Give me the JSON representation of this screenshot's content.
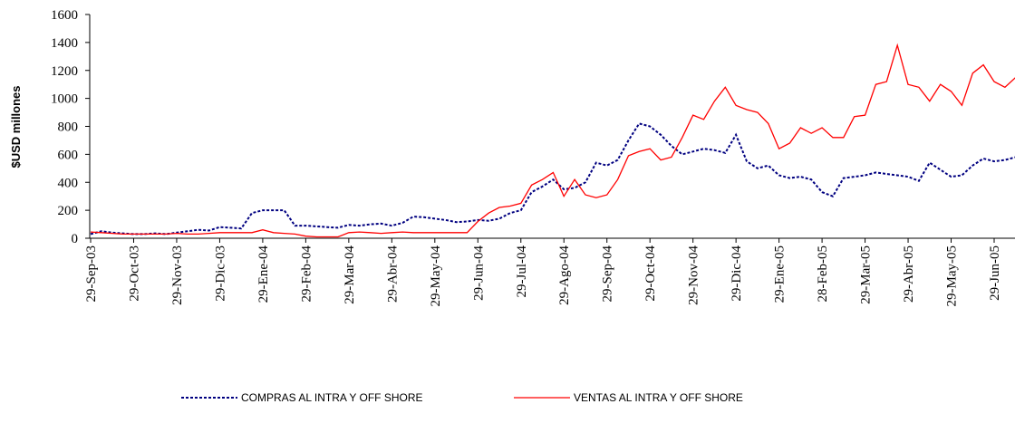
{
  "chart_data": {
    "type": "line",
    "ylabel": "$USD millones",
    "categories": [
      "29-Sep-03",
      null,
      null,
      null,
      "29-Oct-03",
      null,
      null,
      null,
      "29-Nov-03",
      null,
      null,
      null,
      "29-Dic-03",
      null,
      null,
      null,
      "29-Ene-04",
      null,
      null,
      null,
      "29-Feb-04",
      null,
      null,
      null,
      "29-Mar-04",
      null,
      null,
      null,
      "29-Abr-04",
      null,
      null,
      null,
      "29-May-04",
      null,
      null,
      null,
      "29-Jun-04",
      null,
      null,
      null,
      "29-Jul-04",
      null,
      null,
      null,
      "29-Ago-04",
      null,
      null,
      null,
      "29-Sep-04",
      null,
      null,
      null,
      "29-Oct-04",
      null,
      null,
      null,
      "29-Nov-04",
      null,
      null,
      null,
      "29-Dic-04",
      null,
      null,
      null,
      "29-Ene-05",
      null,
      null,
      null,
      "28-Feb-05",
      null,
      null,
      null,
      "29-Mar-05",
      null,
      null,
      null,
      "29-Abr-05",
      null,
      null,
      null,
      "29-May-05",
      null,
      null,
      null,
      "29-Jun-05",
      null,
      null
    ],
    "series": [
      {
        "name": "COMPRAS AL INTRA Y OFF SHORE",
        "color": "#000080",
        "style": "dashed",
        "values": [
          30,
          50,
          40,
          35,
          30,
          30,
          35,
          30,
          40,
          50,
          60,
          55,
          80,
          75,
          70,
          180,
          200,
          200,
          200,
          90,
          90,
          85,
          80,
          75,
          95,
          90,
          100,
          105,
          90,
          110,
          155,
          150,
          140,
          130,
          115,
          120,
          130,
          125,
          140,
          180,
          200,
          330,
          370,
          420,
          350,
          360,
          400,
          540,
          520,
          560,
          700,
          820,
          800,
          740,
          660,
          600,
          620,
          640,
          630,
          610,
          740,
          550,
          500,
          520,
          450,
          430,
          440,
          420,
          330,
          300,
          430,
          440,
          450,
          470,
          460,
          450,
          440,
          410,
          540,
          490,
          440,
          450,
          520,
          570,
          550,
          560,
          580
        ]
      },
      {
        "name": "VENTAS AL INTRA Y OFF SHORE",
        "color": "#ff0000",
        "style": "solid",
        "values": [
          45,
          40,
          35,
          30,
          30,
          30,
          30,
          30,
          35,
          30,
          30,
          35,
          40,
          40,
          40,
          40,
          60,
          40,
          35,
          30,
          15,
          10,
          10,
          10,
          40,
          45,
          40,
          35,
          40,
          45,
          40,
          40,
          40,
          40,
          40,
          40,
          120,
          180,
          220,
          230,
          250,
          380,
          420,
          470,
          300,
          420,
          310,
          290,
          310,
          420,
          590,
          620,
          640,
          560,
          580,
          720,
          880,
          850,
          980,
          1080,
          950,
          920,
          900,
          820,
          640,
          680,
          790,
          750,
          790,
          720,
          720,
          870,
          880,
          1100,
          1120,
          1380,
          1100,
          1080,
          980,
          1100,
          1050,
          950,
          1180,
          1240,
          1120,
          1080,
          1150
        ]
      }
    ],
    "ylim": [
      0,
      1600
    ],
    "yticks": [
      0,
      200,
      400,
      600,
      800,
      1000,
      1200,
      1400,
      1600
    ],
    "grid": false,
    "legend": "bottom"
  }
}
